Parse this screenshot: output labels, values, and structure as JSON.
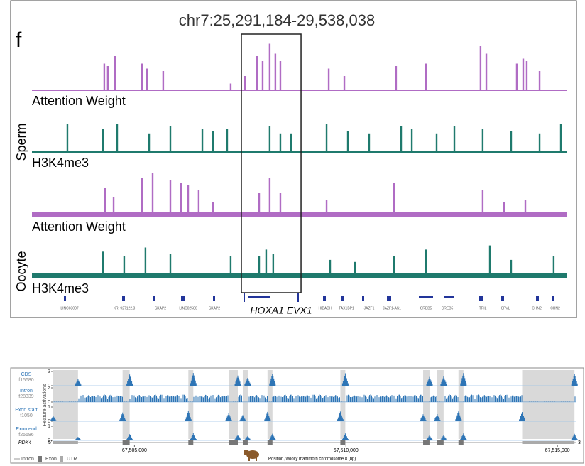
{
  "top_panel": {
    "panel_label": "f",
    "title": "chr7:25,291,184-29,538,038",
    "xlim": [
      25.291184,
      29.538038
    ],
    "highlight": [
      26.955,
      27.429
    ],
    "groups": [
      "Sperm",
      "Oocyte"
    ],
    "tracks": [
      {
        "label": "Attention Weight",
        "color": "#b06cc4",
        "x": [
          25.866,
          25.894,
          25.951,
          26.165,
          26.205,
          26.334,
          26.87,
          26.983,
          27.079,
          27.124,
          27.18,
          27.225,
          27.265,
          27.649,
          27.773,
          28.184,
          28.421,
          28.855,
          28.901,
          29.143,
          29.194,
          29.222,
          29.324
        ],
        "heights": [
          0.55,
          0.5,
          0.7,
          0.55,
          0.45,
          0.4,
          0.15,
          0.3,
          0.7,
          0.6,
          0.95,
          0.75,
          0.6,
          0.45,
          0.3,
          0.5,
          0.55,
          0.9,
          0.75,
          0.55,
          0.65,
          0.6,
          0.4
        ]
      },
      {
        "label": "H3K4me3",
        "color": "#1f7a6d",
        "x": [
          25.573,
          25.855,
          25.968,
          26.222,
          26.391,
          26.645,
          26.729,
          26.842,
          27.18,
          27.265,
          27.35,
          27.632,
          27.801,
          27.97,
          28.224,
          28.309,
          28.506,
          28.647,
          28.872,
          29.098,
          29.324,
          29.493
        ],
        "heights": [
          0.6,
          0.5,
          0.6,
          0.4,
          0.55,
          0.5,
          0.45,
          0.5,
          0.55,
          0.4,
          0.4,
          0.6,
          0.45,
          0.4,
          0.55,
          0.5,
          0.4,
          0.55,
          0.5,
          0.45,
          0.4,
          0.6
        ]
      },
      {
        "label": "Attention Weight",
        "color": "#b06cc4",
        "x": [
          25.872,
          25.94,
          26.165,
          26.25,
          26.391,
          26.475,
          26.532,
          26.616,
          26.729,
          27.096,
          27.18,
          27.265,
          27.632,
          28.167,
          28.872,
          29.041,
          29.211
        ],
        "heights": [
          0.6,
          0.4,
          0.8,
          0.9,
          0.75,
          0.7,
          0.65,
          0.55,
          0.3,
          0.5,
          0.8,
          0.5,
          0.35,
          0.7,
          0.55,
          0.3,
          0.35
        ]
      },
      {
        "label": "H3K4me3",
        "color": "#1f7a6d",
        "x": [
          25.855,
          26.024,
          26.193,
          26.391,
          26.87,
          27.096,
          27.152,
          27.208,
          27.66,
          27.857,
          28.167,
          28.421,
          28.929,
          29.098,
          29.436
        ],
        "heights": [
          0.65,
          0.55,
          0.75,
          0.6,
          0.55,
          0.55,
          0.7,
          0.6,
          0.45,
          0.4,
          0.55,
          0.7,
          0.8,
          0.45,
          0.55
        ]
      }
    ],
    "genes": [
      "LINC03007",
      "XR_927122.3",
      "SKAP2",
      "LINC02586",
      "SKAP2",
      "HIBADH",
      "TAX1BP1",
      "JAZF1",
      "JAZF1-AS1",
      "CREB5",
      "CREB5",
      "TRIL",
      "CPVL",
      "CHN2",
      "CHN2"
    ],
    "highlight_label": "HOXA1 EVX1"
  },
  "bottom_panel": {
    "y_label": "Feature activations",
    "x_label": "Position, woolly mammoth chromosome 8 (bp)",
    "xlim": [
      67503080,
      67515450
    ],
    "xticks": [
      {
        "value": 67505000,
        "label": "67,505,000"
      },
      {
        "value": 67510000,
        "label": "67,510,000"
      },
      {
        "value": 67515000,
        "label": "67,515,000"
      }
    ],
    "tracks": [
      {
        "name": "CDS",
        "feature": "f15680",
        "yticks": [
          0,
          3
        ]
      },
      {
        "name": "Intron",
        "feature": "f28339",
        "yticks": [
          0,
          2
        ]
      },
      {
        "name": "Exon start",
        "feature": "f1050",
        "yticks": [
          0,
          1
        ]
      },
      {
        "name": "Exon end",
        "feature": "f25686",
        "yticks": [
          0,
          1
        ]
      }
    ],
    "exons": [
      [
        67503080,
        67503665
      ],
      [
        67504719,
        67504886
      ],
      [
        67506274,
        67506391
      ],
      [
        67507227,
        67507444
      ],
      [
        67507561,
        67507678
      ],
      [
        67508146,
        67508263
      ],
      [
        67509868,
        67509985
      ],
      [
        67511825,
        67511975
      ],
      [
        67512159,
        67512309
      ],
      [
        67512660,
        67512778
      ],
      [
        67514166,
        67515403
      ]
    ],
    "gene": "PDK4",
    "five_prime": "5'",
    "three_prime": "3'",
    "legend": [
      "Intron",
      "Exon",
      "UTR"
    ]
  }
}
